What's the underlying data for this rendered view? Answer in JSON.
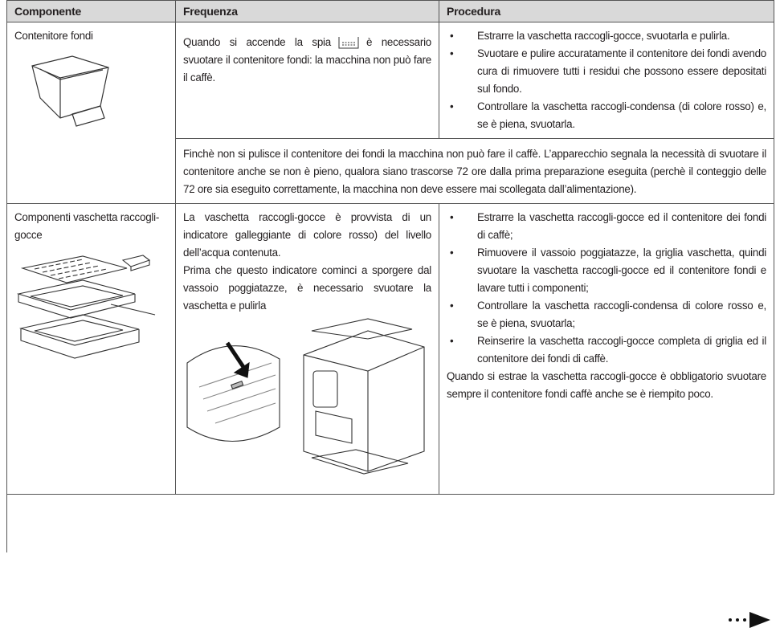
{
  "table": {
    "headers": [
      "Componente",
      "Frequenza",
      "Procedura"
    ],
    "rows": [
      {
        "component": "Contenitore fondi",
        "frequency": [
          "Quando si accende la spia",
          "è necessario svuotare il contenitore fondi: la macchina non può fare il caffè."
        ],
        "procedure": [
          "Estrarre la vaschetta raccogli-gocce, svuotarla e pulirla.",
          "Svuotare e pulire accuratamente il contenitore dei fondi avendo cura di rimuovere tutti i residui che possono essere depositati sul fondo.",
          "Controllare la vaschetta raccogli-condensa (di colore rosso) e, se è piena, svuotarla."
        ],
        "note": "Finchè non si pulisce il contenitore dei fondi  la macchina non può fare il caffè. L’apparecchio segnala la necessità di svuotare il contenitore anche se non è pieno, qualora siano trascorse 72 ore dalla prima preparazione eseguita (perchè il conteggio delle 72 ore sia eseguito correttamente, la macchina non deve essere mai scollegata dall’alimentazione)."
      },
      {
        "component": "Componenti vaschetta raccogli-gocce",
        "frequency": [
          "La vaschetta raccogli-gocce è provvista di un indicatore galleggiante di colore rosso) del livello dell’acqua contenuta.",
          "Prima che questo indicatore cominci a sporgere dal vassoio poggiatazze, è necessario svuotare la vaschetta e pulirla"
        ],
        "procedure": [
          "Estrarre la vaschetta raccogli-gocce ed il contenitore dei fondi di caffè;",
          "Rimuovere il vassoio poggiatazze, la griglia vaschetta, quindi svuotare la vaschetta raccogli-gocce ed il contenitore fondi e lavare tutti i componenti;",
          "Controllare la vaschetta raccogli-condensa di colore rosso e, se è piena, svuotarla;",
          "Reinserire la vaschetta raccogli-gocce completa di griglia ed il contenitore dei fondi di caffè."
        ],
        "note": "Quando si estrae la vaschetta raccogli-gocce è obbligatorio svuotare sempre il contenitore fondi caffè anche se è riempito poco."
      }
    ]
  }
}
